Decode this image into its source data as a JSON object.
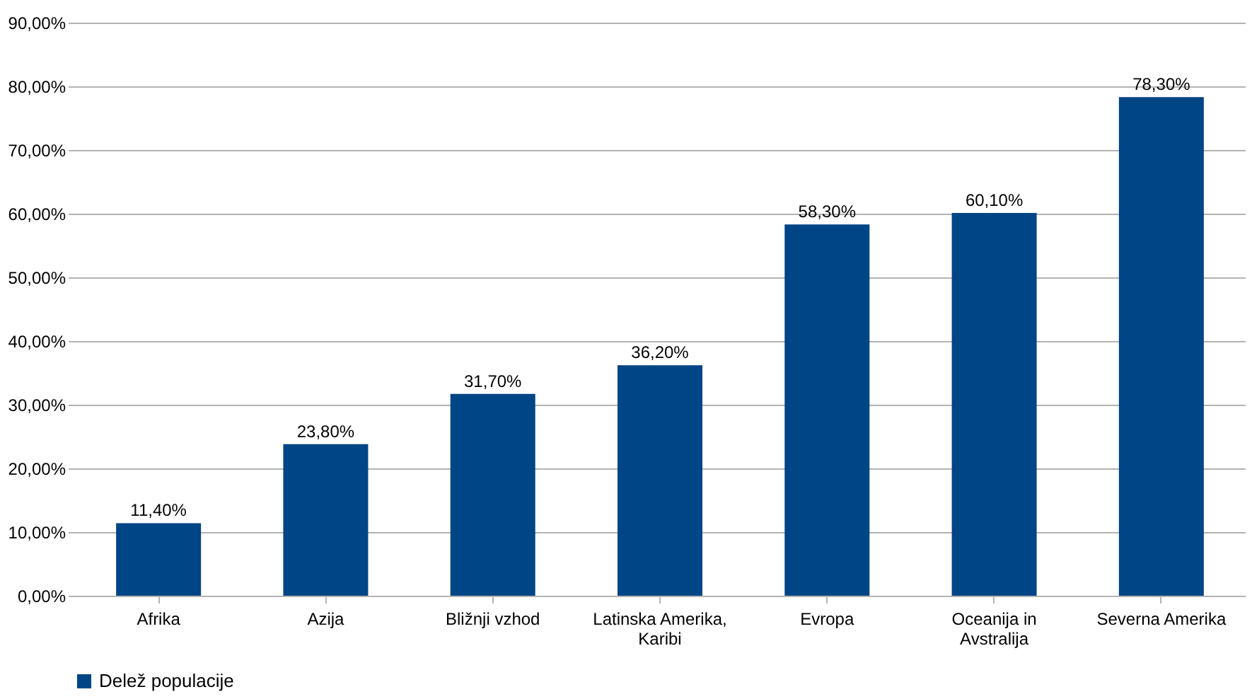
{
  "chart_data": {
    "type": "bar",
    "categories": [
      "Afrika",
      "Azija",
      "Bližnji vzhod",
      "Latinska Amerika, Karibi",
      "Evropa",
      "Oceanija in Avstralija",
      "Severna Amerika"
    ],
    "series": [
      {
        "name": "Delež populacije",
        "color": "#004586",
        "values": [
          11.4,
          23.8,
          31.7,
          36.2,
          58.3,
          60.1,
          78.3
        ],
        "value_labels": [
          "11,40%",
          "23,80%",
          "31,70%",
          "36,20%",
          "58,30%",
          "60,10%",
          "78,30%"
        ]
      }
    ],
    "ylim": [
      0,
      90
    ],
    "yticks": [
      {
        "value": 0,
        "label": "0,00%"
      },
      {
        "value": 10,
        "label": "10,00%"
      },
      {
        "value": 20,
        "label": "20,00%"
      },
      {
        "value": 30,
        "label": "30,00%"
      },
      {
        "value": 40,
        "label": "40,00%"
      },
      {
        "value": 50,
        "label": "50,00%"
      },
      {
        "value": 60,
        "label": "60,00%"
      },
      {
        "value": 70,
        "label": "70,00%"
      },
      {
        "value": 80,
        "label": "80,00%"
      },
      {
        "value": 90,
        "label": "90,00%"
      }
    ],
    "grid": "y",
    "legend": "bottom"
  }
}
